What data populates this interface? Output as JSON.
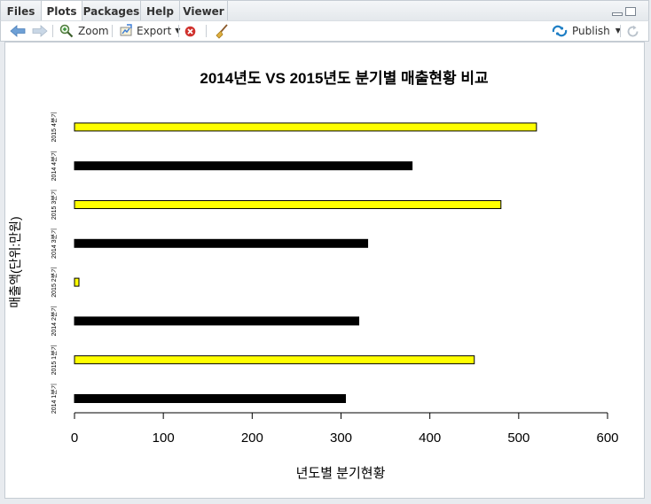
{
  "tabs": [
    {
      "label": "Files",
      "active": false
    },
    {
      "label": "Plots",
      "active": true
    },
    {
      "label": "Packages",
      "active": false
    },
    {
      "label": "Help",
      "active": false
    },
    {
      "label": "Viewer",
      "active": false
    }
  ],
  "toolbar": {
    "zoom_label": "Zoom",
    "export_label": "Export",
    "publish_label": "Publish"
  },
  "colors": {
    "bar_2014": "#000000",
    "bar_2015": "#ffff00",
    "publish_icon": "#1f7fc5",
    "remove_icon": "#d0312d"
  },
  "icons": {
    "back": "arrow-left-icon",
    "forward": "arrow-right-icon",
    "zoom": "zoom-icon",
    "export": "export-icon",
    "remove": "remove-plot-icon",
    "clear": "broom-icon",
    "publish": "publish-icon",
    "refresh": "refresh-icon"
  },
  "chart_data": {
    "type": "bar",
    "orientation": "horizontal",
    "title": "2014년도 VS 2015년도 분기별 매출현황 비교",
    "xlabel": "년도별 분기현황",
    "ylabel": "매출액(단위:만원)",
    "xlim": [
      0,
      600
    ],
    "xticks": [
      0,
      100,
      200,
      300,
      400,
      500,
      600
    ],
    "categories": [
      "2014 1분기",
      "2015 1분기",
      "2014 2분기",
      "2015 2분기",
      "2014 3분기",
      "2015 3분기",
      "2014 4분기",
      "2015 4분기"
    ],
    "values": [
      305,
      450,
      320,
      5,
      330,
      480,
      380,
      520
    ],
    "bar_colors": [
      "#000000",
      "#ffff00",
      "#000000",
      "#ffff00",
      "#000000",
      "#ffff00",
      "#000000",
      "#ffff00"
    ],
    "grid": false
  }
}
